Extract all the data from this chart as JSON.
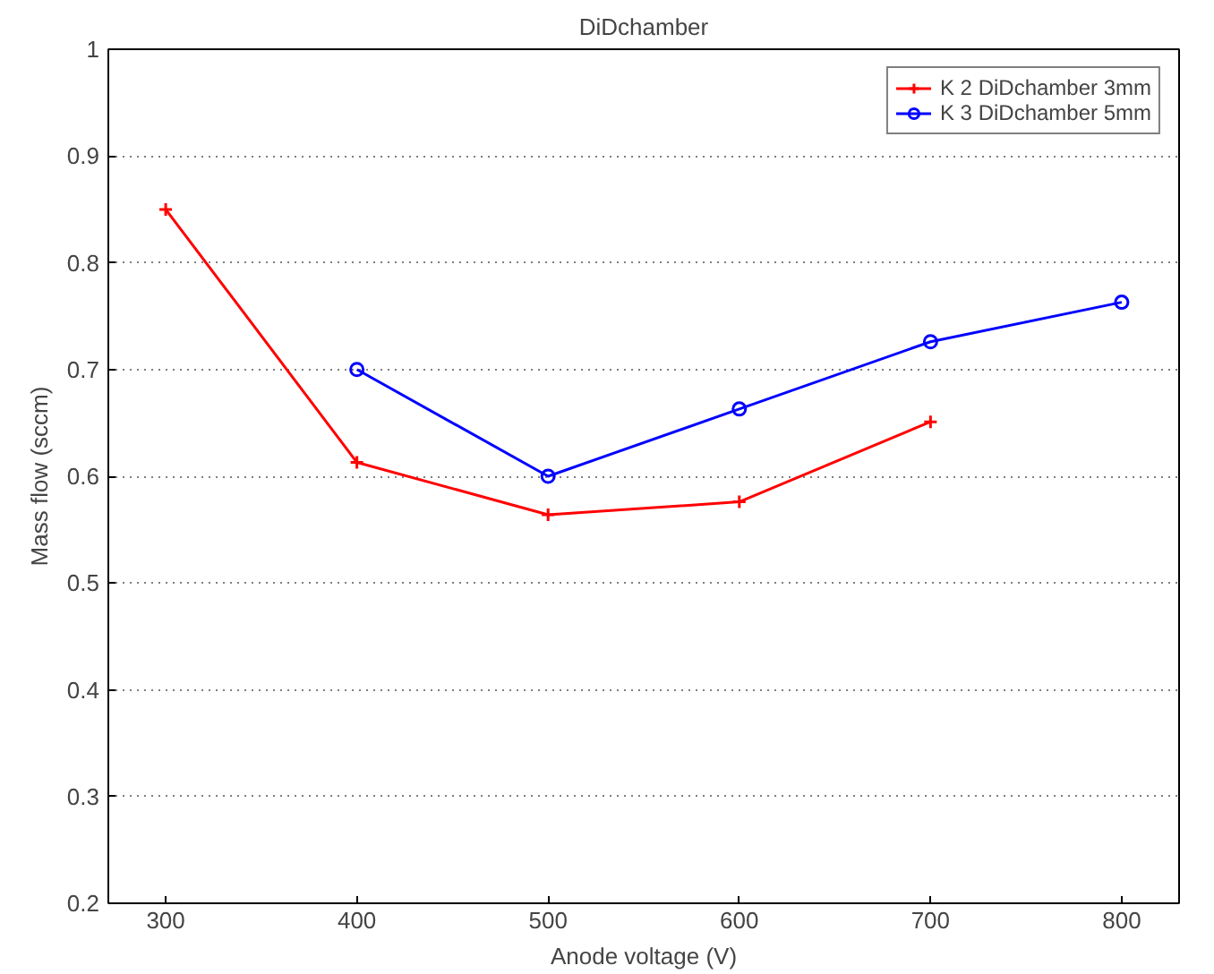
{
  "chart_data": {
    "type": "line",
    "title": "DiDchamber",
    "xlabel": "Anode voltage (V)",
    "ylabel": "Mass flow (sccm)",
    "xlim": [
      270,
      830
    ],
    "xticks": [
      300,
      400,
      500,
      600,
      700,
      800
    ],
    "ylim": [
      0.2,
      1
    ],
    "yticks": [
      0.2,
      0.3,
      0.4,
      0.5,
      0.6,
      0.7,
      0.8,
      0.9,
      1
    ],
    "grid": "y",
    "legend": "top right",
    "line_style": "solid",
    "series": [
      {
        "name": "K 2 DiDchamber 3mm",
        "color": "#ff0000",
        "marker": "cross",
        "x": [
          300,
          400,
          500,
          600,
          700
        ],
        "values": [
          0.85,
          0.613,
          0.564,
          0.576,
          0.651
        ]
      },
      {
        "name": "K 3 DiDchamber 5mm",
        "color": "#0000ff",
        "marker": "circle",
        "x": [
          400,
          500,
          600,
          700,
          800
        ],
        "values": [
          0.7,
          0.6,
          0.663,
          0.726,
          0.763
        ]
      }
    ]
  }
}
